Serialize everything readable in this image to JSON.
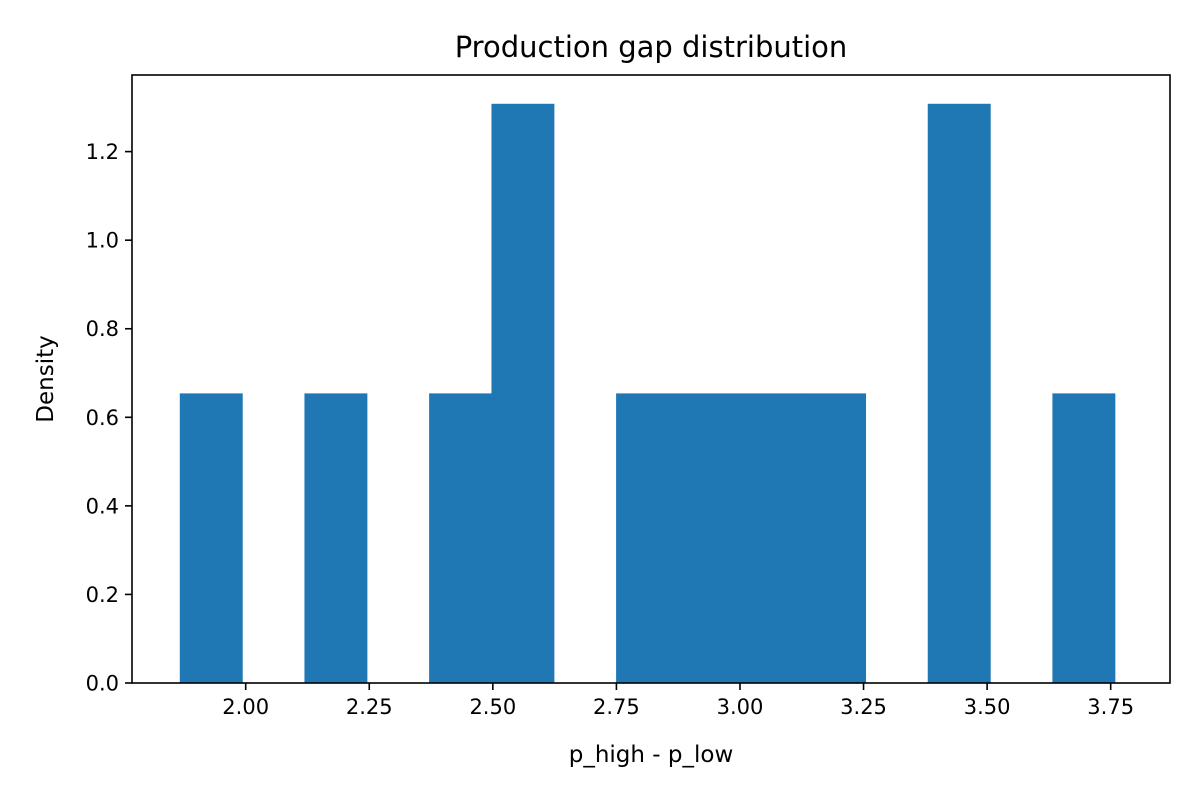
{
  "chart_data": {
    "type": "bar",
    "subtype": "histogram",
    "title": "Production gap distribution",
    "xlabel": "p_high - p_low",
    "ylabel": "Density",
    "bin_edges": [
      1.8667,
      1.9928,
      2.1189,
      2.245,
      2.3711,
      2.4972,
      2.6233,
      2.7494,
      2.8755,
      3.0016,
      3.1277,
      3.2538,
      3.3799,
      3.506,
      3.6321,
      3.7582
    ],
    "values": [
      0.654,
      0,
      0.654,
      0,
      0.654,
      1.308,
      0,
      0.654,
      0.654,
      0.654,
      0.654,
      0,
      1.308,
      0,
      0.654
    ],
    "xlim": [
      1.77,
      3.87
    ],
    "ylim": [
      0,
      1.373
    ],
    "xticks": [
      "2.00",
      "2.25",
      "2.50",
      "2.75",
      "3.00",
      "3.25",
      "3.50",
      "3.75"
    ],
    "yticks": [
      "0.0",
      "0.2",
      "0.4",
      "0.6",
      "0.8",
      "1.0",
      "1.2"
    ],
    "grid": false,
    "legend": "none",
    "bar_color": "#1f77b4"
  }
}
